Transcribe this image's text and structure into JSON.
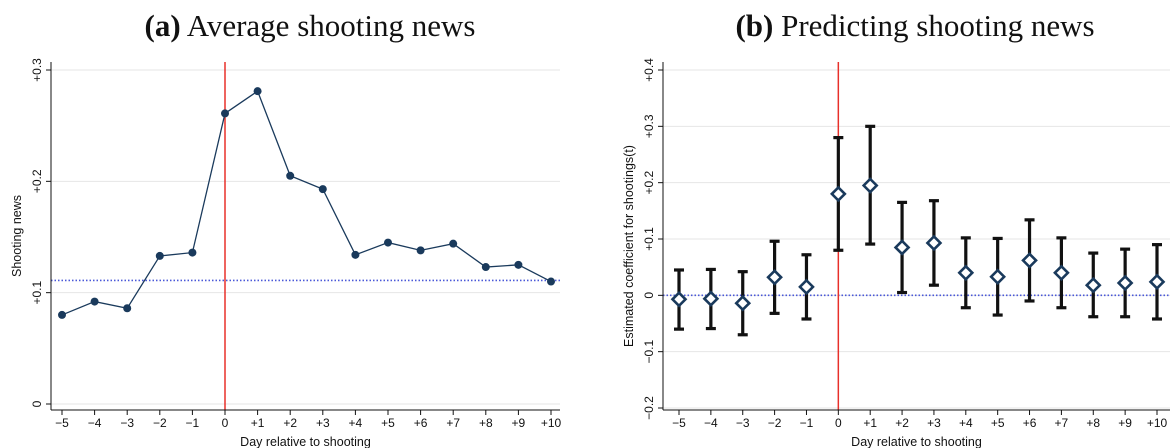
{
  "panels": {
    "a": {
      "letter": "(a)",
      "title": "Average shooting news"
    },
    "b": {
      "letter": "(b)",
      "title": "Predicting shooting news"
    }
  },
  "colors": {
    "series_a": "#1a3a5c",
    "series_b_marker": "#1a3a5c",
    "ci_bars": "#111111",
    "event_line": "#e8302a",
    "reference_line": "#4a58d8",
    "grid": "#e6e6e6"
  },
  "chart_data": [
    {
      "type": "line",
      "title": "(a) Average shooting news",
      "xlabel": "Day relative to shooting",
      "ylabel": "Shooting news",
      "x": [
        -5,
        -4,
        -3,
        -2,
        -1,
        0,
        1,
        2,
        3,
        4,
        5,
        6,
        7,
        8,
        9,
        10
      ],
      "x_tick_labels": [
        "−5",
        "−4",
        "−3",
        "−2",
        "−1",
        "0",
        "+1",
        "+2",
        "+3",
        "+4",
        "+5",
        "+6",
        "+7",
        "+8",
        "+9",
        "+10"
      ],
      "series": [
        {
          "values": [
            0.08,
            0.092,
            0.086,
            0.133,
            0.136,
            0.261,
            0.281,
            0.205,
            0.193,
            0.134,
            0.145,
            0.138,
            0.144,
            0.123,
            0.125,
            0.11
          ]
        }
      ],
      "ylim": [
        0,
        0.3
      ],
      "y_ticks": [
        0,
        0.1,
        0.2,
        0.3
      ],
      "y_tick_labels": [
        "0",
        "+0.1",
        "+0.2",
        "+0.3"
      ],
      "reference_line_y": 0.111,
      "event_line_x": 0,
      "grid": true,
      "legend": "none"
    },
    {
      "type": "scatter",
      "title": "(b) Predicting shooting news",
      "xlabel": "Day relative to shooting",
      "ylabel": "Estimated coefficient for shootings(t)",
      "x": [
        -5,
        -4,
        -3,
        -2,
        -1,
        0,
        1,
        2,
        3,
        4,
        5,
        6,
        7,
        8,
        9,
        10
      ],
      "x_tick_labels": [
        "−5",
        "−4",
        "−3",
        "−2",
        "−1",
        "0",
        "+1",
        "+2",
        "+3",
        "+4",
        "+5",
        "+6",
        "+7",
        "+8",
        "+9",
        "+10"
      ],
      "series": [
        {
          "values": [
            -0.007,
            -0.006,
            -0.014,
            0.032,
            0.015,
            0.18,
            0.195,
            0.085,
            0.093,
            0.04,
            0.033,
            0.062,
            0.04,
            0.018,
            0.022,
            0.024
          ],
          "ci_low": [
            -0.06,
            -0.059,
            -0.07,
            -0.032,
            -0.042,
            0.08,
            0.091,
            0.005,
            0.018,
            -0.022,
            -0.035,
            -0.01,
            -0.022,
            -0.038,
            -0.038,
            -0.042
          ],
          "ci_high": [
            0.045,
            0.046,
            0.042,
            0.096,
            0.072,
            0.28,
            0.3,
            0.165,
            0.168,
            0.102,
            0.101,
            0.134,
            0.102,
            0.075,
            0.082,
            0.09
          ]
        }
      ],
      "ylim": [
        -0.2,
        0.4
      ],
      "y_ticks": [
        -0.2,
        -0.1,
        0,
        0.1,
        0.2,
        0.3,
        0.4
      ],
      "y_tick_labels": [
        "−0.2",
        "−0.1",
        "0",
        "+0.1",
        "+0.2",
        "+0.3",
        "+0.4"
      ],
      "reference_line_y": 0,
      "event_line_x": 0,
      "grid": true,
      "legend": "none"
    }
  ]
}
